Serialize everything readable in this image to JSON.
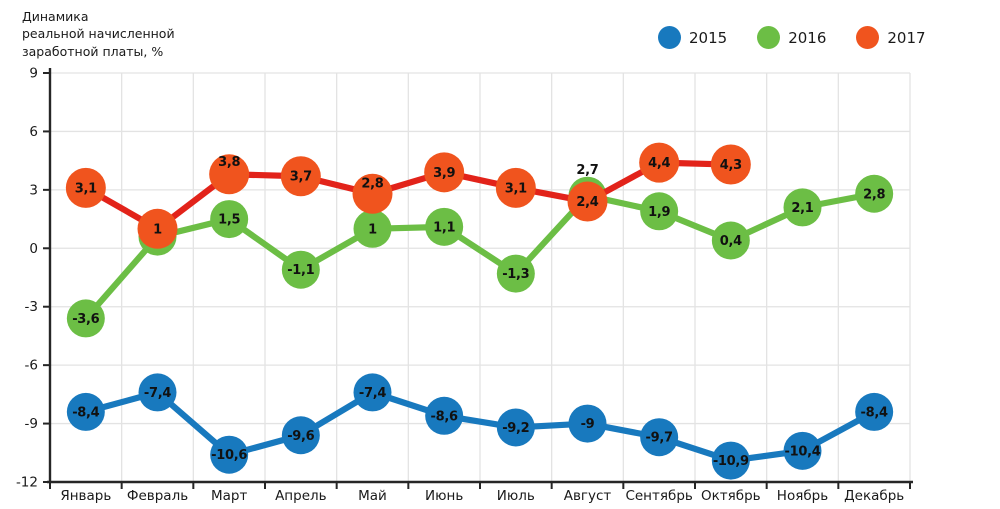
{
  "title": "Динамика\nреальной начисленной\nзаработной платы, %",
  "colors": {
    "blue": "#1879BE",
    "green": "#6CBE45",
    "orange_marker": "#F0541E",
    "red_line": "#E2231A",
    "grid": "#E3E3E3",
    "axis": "#262626",
    "point_label": "#111111",
    "axis_label": "#1a1a1a"
  },
  "chart_data": {
    "type": "line",
    "title": "Динамика реальной начисленной заработной платы, %",
    "categories": [
      "Январь",
      "Февраль",
      "Март",
      "Апрель",
      "Май",
      "Июнь",
      "Июль",
      "Август",
      "Сентябрь",
      "Октябрь",
      "Ноябрь",
      "Декабрь"
    ],
    "ylim": [
      -12,
      9
    ],
    "yticks": [
      9,
      6,
      3,
      0,
      -3,
      -6,
      -9,
      -12
    ],
    "grid": true,
    "legend_position": "top-right",
    "series": [
      {
        "name": "2015",
        "line_color_key": "blue",
        "marker_color_key": "blue",
        "values": [
          -8.4,
          -7.4,
          -10.6,
          -9.6,
          -7.4,
          -8.6,
          -9.2,
          -9,
          -9.7,
          -10.9,
          -10.4,
          -8.4
        ],
        "labels": [
          "-8,4",
          "-7,4",
          "-10,6",
          "-9,6",
          "-7,4",
          "-8,6",
          "-9,2",
          "-9",
          "-9,7",
          "-10,9",
          "-10,4",
          "-8,4"
        ],
        "label_dy": {}
      },
      {
        "name": "2016",
        "line_color_key": "green",
        "marker_color_key": "green",
        "values": [
          -3.6,
          0.6,
          1.5,
          -1.1,
          1,
          1.1,
          -1.3,
          2.7,
          1.9,
          0.4,
          2.1,
          2.8
        ],
        "labels": [
          "-3,6",
          "",
          "1,5",
          "-1,1",
          "1",
          "1,1",
          "-1,3",
          "2,7",
          "1,9",
          "0,4",
          "2,1",
          "2,8"
        ],
        "label_dy": {
          "7": -26
        }
      },
      {
        "name": "2017",
        "line_color_key": "red_line",
        "marker_color_key": "orange_marker",
        "values": [
          3.1,
          1,
          3.8,
          3.7,
          2.8,
          3.9,
          3.1,
          2.4,
          4.4,
          4.3,
          null,
          null
        ],
        "labels": [
          "3,1",
          "1",
          "3,8",
          "3,7",
          "2,8",
          "3,9",
          "3,1",
          "2,4",
          "4,4",
          "4,3",
          "",
          ""
        ],
        "label_dy": {
          "2": -13,
          "4": -11
        }
      }
    ]
  }
}
